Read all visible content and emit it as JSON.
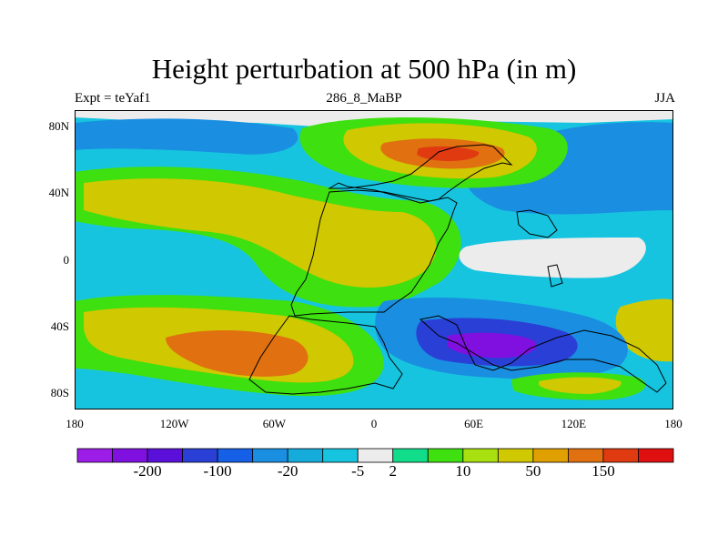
{
  "title": "Height perturbation at 500 hPa (in m)",
  "subtitle_left": "Expt = teYaf1",
  "subtitle_center": "286_8_MaBP",
  "subtitle_right": "JJA",
  "chart_data": {
    "type": "heatmap",
    "title": "Height perturbation at 500 hPa (in m)",
    "x_ticks": [
      "180",
      "120W",
      "60W",
      "0",
      "60E",
      "120E",
      "180"
    ],
    "x_tick_values": [
      -180,
      -120,
      -60,
      0,
      60,
      120,
      180
    ],
    "y_ticks": [
      "80N",
      "40N",
      "0",
      "40S",
      "80S"
    ],
    "y_tick_values": [
      80,
      40,
      0,
      -40,
      -80
    ],
    "xlim": [
      -180,
      180
    ],
    "ylim": [
      -90,
      90
    ],
    "colorbar": {
      "colors": [
        "#9d1de8",
        "#7f10e0",
        "#5a10d8",
        "#2a3fd6",
        "#1560e6",
        "#1a8ee0",
        "#15acdc",
        "#16c4e0",
        "#ececec",
        "#10dc8a",
        "#3ee010",
        "#a8e010",
        "#d0c800",
        "#e0a000",
        "#e07010",
        "#e03a10",
        "#e01010"
      ],
      "labels": [
        "-200",
        "-100",
        "-20",
        "-5",
        "2",
        "10",
        "50",
        "150"
      ],
      "label_after_box": [
        1,
        3,
        5,
        7,
        8,
        10,
        12,
        14
      ]
    },
    "regions": [
      {
        "name": "background",
        "level": -5
      },
      {
        "name": "north-pole-cap",
        "level": 2
      },
      {
        "name": "arctic-blue-band-west",
        "level": -20
      },
      {
        "name": "arctic-blue-band-east",
        "level": -20
      },
      {
        "name": "subtropical-high-west",
        "level": 10
      },
      {
        "name": "subtropical-high-west-core",
        "level": 50
      },
      {
        "name": "atlantic-high",
        "level": 50
      },
      {
        "name": "asian-high",
        "level": 10
      },
      {
        "name": "asian-high-core",
        "level": 50
      },
      {
        "name": "asian-high-peak",
        "level": 150
      },
      {
        "name": "asian-high-max",
        "level": 200
      },
      {
        "name": "southern-high-west",
        "level": 10
      },
      {
        "name": "southern-high-west-core",
        "level": 50
      },
      {
        "name": "southern-high-west-peak",
        "level": 150
      },
      {
        "name": "southern-low-east",
        "level": -20
      },
      {
        "name": "southern-low-east-core",
        "level": -100
      },
      {
        "name": "southern-low-east-min",
        "level": -200
      },
      {
        "name": "antarctic-high-east",
        "level": 10
      },
      {
        "name": "antarctic-high-east-core",
        "level": 50
      },
      {
        "name": "far-east-high",
        "level": 50
      },
      {
        "name": "indian-ocean-neutral",
        "level": 2
      }
    ]
  }
}
